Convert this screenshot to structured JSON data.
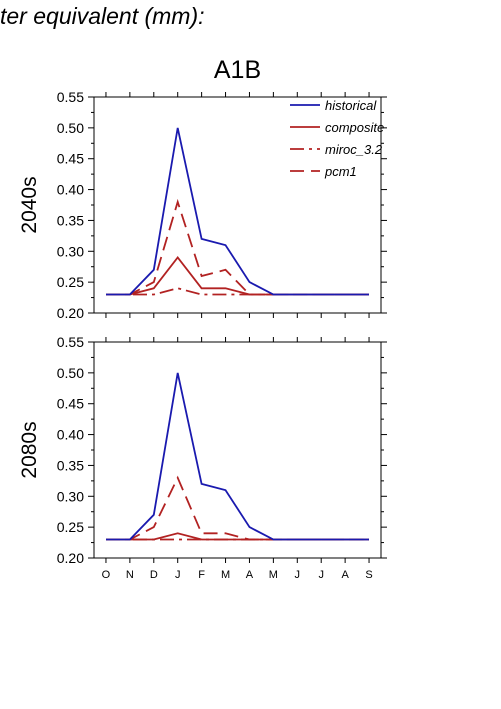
{
  "header": {
    "title": "ter equivalent (mm):",
    "scenario": "A1B"
  },
  "chart_data": [
    {
      "type": "line",
      "row_label": "2040s",
      "x": [
        "O",
        "N",
        "D",
        "J",
        "F",
        "M",
        "A",
        "M",
        "J",
        "J",
        "A",
        "S"
      ],
      "ylim": [
        0.2,
        0.55
      ],
      "yticks": [
        "0.20",
        "0.25",
        "0.30",
        "0.35",
        "0.40",
        "0.45",
        "0.50",
        "0.55"
      ],
      "legend_position": "top-right",
      "series": [
        {
          "name": "historical",
          "color": "#1a1aaf",
          "dash": "solid",
          "values": [
            0.23,
            0.23,
            0.27,
            0.5,
            0.32,
            0.31,
            0.25,
            0.23,
            0.23,
            0.23,
            0.23,
            0.23
          ]
        },
        {
          "name": "composite",
          "color": "#b22222",
          "dash": "solid",
          "values": [
            0.23,
            0.23,
            0.24,
            0.29,
            0.24,
            0.24,
            0.23,
            0.23,
            0.23,
            0.23,
            0.23,
            0.23
          ]
        },
        {
          "name": "miroc_3.2",
          "color": "#b22222",
          "dash": "dashdot",
          "values": [
            0.23,
            0.23,
            0.23,
            0.24,
            0.23,
            0.23,
            0.23,
            0.23,
            0.23,
            0.23,
            0.23,
            0.23
          ]
        },
        {
          "name": "pcm1",
          "color": "#b22222",
          "dash": "dashed",
          "values": [
            0.23,
            0.23,
            0.25,
            0.38,
            0.26,
            0.27,
            0.23,
            0.23,
            0.23,
            0.23,
            0.23,
            0.23
          ]
        }
      ]
    },
    {
      "type": "line",
      "row_label": "2080s",
      "x": [
        "O",
        "N",
        "D",
        "J",
        "F",
        "M",
        "A",
        "M",
        "J",
        "J",
        "A",
        "S"
      ],
      "ylim": [
        0.2,
        0.55
      ],
      "yticks": [
        "0.20",
        "0.25",
        "0.30",
        "0.35",
        "0.40",
        "0.45",
        "0.50",
        "0.55"
      ],
      "series": [
        {
          "name": "historical",
          "color": "#1a1aaf",
          "dash": "solid",
          "values": [
            0.23,
            0.23,
            0.27,
            0.5,
            0.32,
            0.31,
            0.25,
            0.23,
            0.23,
            0.23,
            0.23,
            0.23
          ]
        },
        {
          "name": "composite",
          "color": "#b22222",
          "dash": "solid",
          "values": [
            0.23,
            0.23,
            0.23,
            0.24,
            0.23,
            0.23,
            0.23,
            0.23,
            0.23,
            0.23,
            0.23,
            0.23
          ]
        },
        {
          "name": "miroc_3.2",
          "color": "#b22222",
          "dash": "dashdot",
          "values": [
            0.23,
            0.23,
            0.23,
            0.23,
            0.23,
            0.23,
            0.23,
            0.23,
            0.23,
            0.23,
            0.23,
            0.23
          ]
        },
        {
          "name": "pcm1",
          "color": "#b22222",
          "dash": "dashed",
          "values": [
            0.23,
            0.23,
            0.25,
            0.33,
            0.24,
            0.24,
            0.23,
            0.23,
            0.23,
            0.23,
            0.23,
            0.23
          ]
        }
      ]
    }
  ]
}
